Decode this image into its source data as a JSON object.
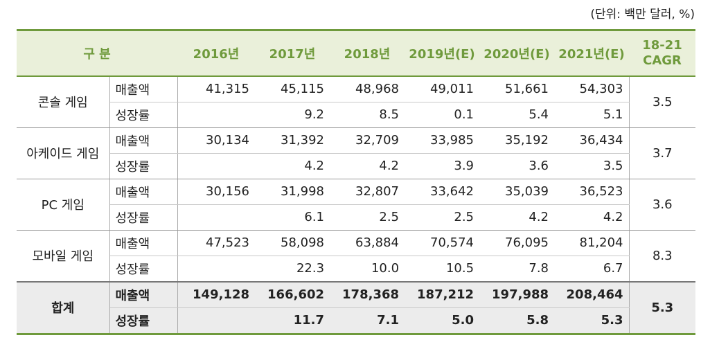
{
  "unit_note": "(단위: 백만 달러, %)",
  "headers": {
    "category": "구 분",
    "years": [
      "2016년",
      "2017년",
      "2018년",
      "2019년(E)",
      "2020년(E)",
      "2021년(E)"
    ],
    "cagr_top": "18-21",
    "cagr_bottom": "CAGR"
  },
  "metric_labels": {
    "sales": "매출액",
    "growth": "성장률"
  },
  "rows": [
    {
      "name": "콘솔 게임",
      "sales": [
        "41,315",
        "45,115",
        "48,968",
        "49,011",
        "51,661",
        "54,303"
      ],
      "growth": [
        "",
        "9.2",
        "8.5",
        "0.1",
        "5.4",
        "5.1"
      ],
      "cagr": "3.5"
    },
    {
      "name": "아케이드 게임",
      "sales": [
        "30,134",
        "31,392",
        "32,709",
        "33,985",
        "35,192",
        "36,434"
      ],
      "growth": [
        "",
        "4.2",
        "4.2",
        "3.9",
        "3.6",
        "3.5"
      ],
      "cagr": "3.7"
    },
    {
      "name": "PC 게임",
      "sales": [
        "30,156",
        "31,998",
        "32,807",
        "33,642",
        "35,039",
        "36,523"
      ],
      "growth": [
        "",
        "6.1",
        "2.5",
        "2.5",
        "4.2",
        "4.2"
      ],
      "cagr": "3.6"
    },
    {
      "name": "모바일 게임",
      "sales": [
        "47,523",
        "58,098",
        "63,884",
        "70,574",
        "76,095",
        "81,204"
      ],
      "growth": [
        "",
        "22.3",
        "10.0",
        "10.5",
        "7.8",
        "6.7"
      ],
      "cagr": "8.3"
    },
    {
      "name": "합계",
      "sales": [
        "149,128",
        "166,602",
        "178,368",
        "187,212",
        "197,988",
        "208,464"
      ],
      "growth": [
        "",
        "11.7",
        "7.1",
        "5.0",
        "5.8",
        "5.3"
      ],
      "cagr": "5.3"
    }
  ]
}
